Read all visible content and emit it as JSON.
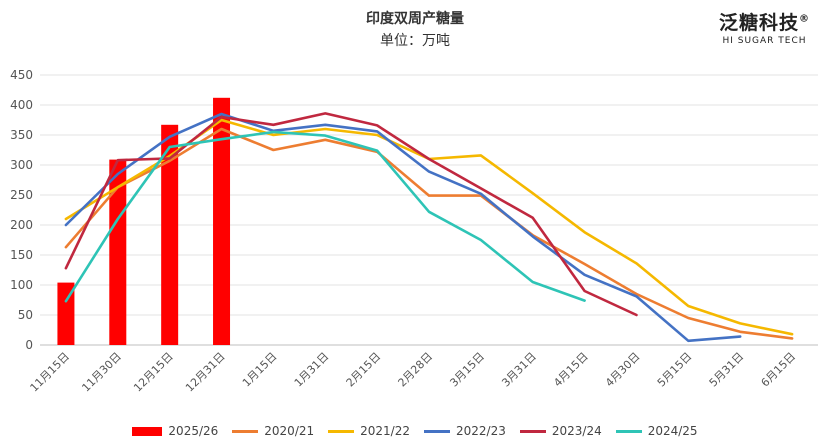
{
  "chart_data": {
    "type": "bar+line",
    "title": "印度双周产糖量",
    "subtitle": "单位：万吨",
    "categories": [
      "11月15日",
      "11月30日",
      "12月15日",
      "12月31日",
      "1月15日",
      "1月31日",
      "2月15日",
      "2月28日",
      "3月15日",
      "3月31日",
      "4月15日",
      "4月30日",
      "5月15日",
      "5月31日",
      "6月15日"
    ],
    "ylim": [
      0,
      450
    ],
    "yticks": [
      "0",
      "50",
      "100",
      "150",
      "200",
      "250",
      "300",
      "350",
      "400",
      "450"
    ],
    "grid": true,
    "legend_position": "bottom",
    "bar_series": {
      "name": "2025/26",
      "color": "#ff0000",
      "values": [
        104,
        309,
        367,
        412
      ]
    },
    "series": [
      {
        "name": "2020/21",
        "color": "#ed7d31",
        "values": [
          163,
          263,
          307,
          360,
          325,
          342,
          322,
          249,
          249,
          183,
          135,
          85,
          45,
          22,
          11
        ]
      },
      {
        "name": "2021/22",
        "color": "#f5b800",
        "values": [
          210,
          263,
          315,
          375,
          350,
          360,
          350,
          310,
          316,
          253,
          188,
          136,
          65,
          36,
          18
        ]
      },
      {
        "name": "2022/23",
        "color": "#4472c4",
        "values": [
          200,
          285,
          347,
          385,
          357,
          367,
          356,
          289,
          252,
          181,
          117,
          81,
          7,
          14,
          null
        ]
      },
      {
        "name": "2023/24",
        "color": "#c0283f",
        "values": [
          128,
          308,
          311,
          380,
          367,
          386,
          366,
          310,
          261,
          212,
          90,
          50,
          null,
          null,
          null
        ]
      },
      {
        "name": "2024/25",
        "color": "#2ec4b6",
        "values": [
          73,
          210,
          330,
          343,
          355,
          349,
          324,
          222,
          175,
          105,
          74,
          null,
          null,
          null,
          null
        ]
      }
    ]
  },
  "brand": {
    "name": "泛糖科技",
    "reg": "®",
    "en": "HI SUGAR TECH"
  }
}
